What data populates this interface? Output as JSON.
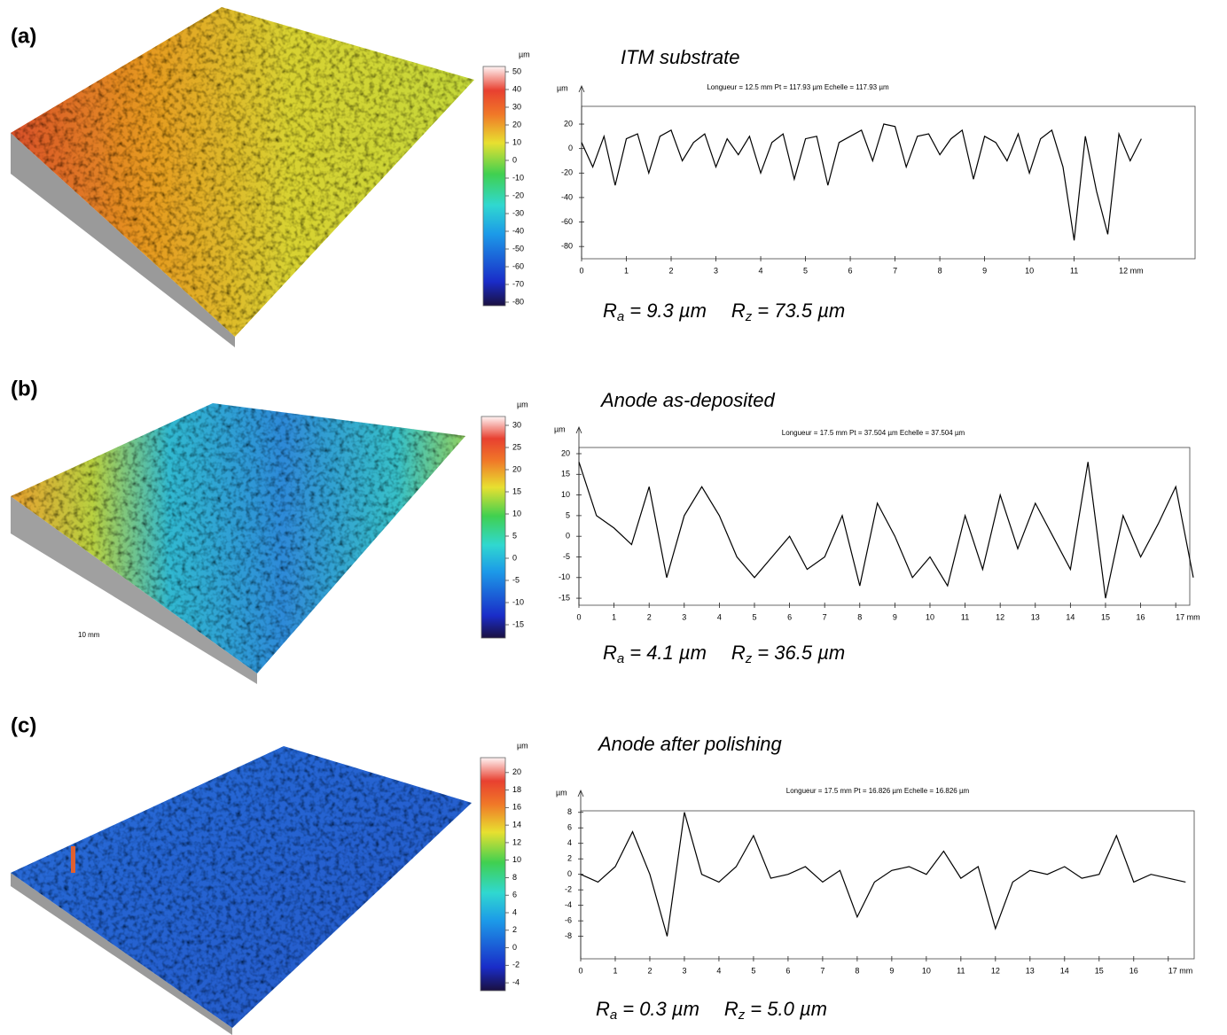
{
  "chart_data": [
    {
      "type": "line",
      "panel_label": "(a)",
      "title": "ITM substrate",
      "header": "Longueur = 12.5 mm  Pt = 117.93 µm  Echelle = 117.93 µm",
      "y_unit": "µm",
      "x": [
        0,
        0.25,
        0.5,
        0.75,
        1,
        1.25,
        1.5,
        1.75,
        2,
        2.25,
        2.5,
        2.75,
        3,
        3.25,
        3.5,
        3.75,
        4,
        4.25,
        4.5,
        4.75,
        5,
        5.25,
        5.5,
        5.75,
        6,
        6.25,
        6.5,
        6.75,
        7,
        7.25,
        7.5,
        7.75,
        8,
        8.25,
        8.5,
        8.75,
        9,
        9.25,
        9.5,
        9.75,
        10,
        10.25,
        10.5,
        10.75,
        11,
        11.25,
        11.5,
        11.75,
        12,
        12.25,
        12.5
      ],
      "values": [
        5,
        -15,
        10,
        -30,
        8,
        12,
        -20,
        10,
        15,
        -10,
        5,
        12,
        -15,
        8,
        -5,
        10,
        -20,
        5,
        12,
        -25,
        8,
        10,
        -30,
        5,
        10,
        15,
        -10,
        20,
        18,
        -15,
        10,
        12,
        -5,
        8,
        15,
        -25,
        10,
        5,
        -10,
        12,
        -20,
        8,
        15,
        -15,
        -75,
        10,
        -35,
        -70,
        12,
        -10,
        8
      ],
      "color": "#000000",
      "xlim": [
        0,
        13.7
      ],
      "ylim": [
        -90,
        34.5
      ],
      "xticks": [
        0,
        1,
        2,
        3,
        4,
        5,
        6,
        7,
        8,
        9,
        10,
        11,
        {
          "value": 12,
          "label": "12 mm"
        }
      ],
      "yticks": [
        20,
        0,
        -20,
        -40,
        -60,
        -80
      ],
      "colorbar": {
        "unit": "µm",
        "lim": [
          -82,
          53
        ],
        "ticks": [
          50,
          40,
          30,
          20,
          10,
          0,
          -10,
          -20,
          -30,
          -40,
          -50,
          -60,
          -70,
          -80
        ]
      },
      "roughness": [
        {
          "symbol": "R",
          "subscript": "a",
          "text": "= 9.3 µm"
        },
        {
          "symbol": "R",
          "subscript": "z",
          "text": "= 73.5 µm"
        }
      ]
    },
    {
      "type": "line",
      "panel_label": "(b)",
      "title": "Anode as-deposited",
      "header": "Longueur = 17.5 mm  Pt = 37.504 µm  Echelle = 37.504 µm",
      "y_unit": "µm",
      "surface_label": "10 mm",
      "x": [
        0,
        0.5,
        1,
        1.5,
        2,
        2.5,
        3,
        3.5,
        4,
        4.5,
        5,
        5.5,
        6,
        6.5,
        7,
        7.5,
        8,
        8.5,
        9,
        9.5,
        10,
        10.5,
        11,
        11.5,
        12,
        12.5,
        13,
        13.5,
        14,
        14.5,
        15,
        15.5,
        16,
        16.5,
        17,
        17.5
      ],
      "values": [
        18,
        5,
        2,
        -2,
        12,
        -10,
        5,
        12,
        5,
        -5,
        -10,
        -5,
        0,
        -8,
        -5,
        5,
        -12,
        8,
        0,
        -10,
        -5,
        -12,
        5,
        -8,
        10,
        -3,
        8,
        0,
        -8,
        18,
        -15,
        5,
        -5,
        3,
        12,
        -10
      ],
      "color": "#000000",
      "xlim": [
        0,
        17.4
      ],
      "ylim": [
        -16.7,
        21.5
      ],
      "xticks": [
        0,
        1,
        2,
        3,
        4,
        5,
        6,
        7,
        8,
        9,
        10,
        11,
        12,
        13,
        14,
        15,
        16,
        {
          "value": 17,
          "label": "17 mm"
        }
      ],
      "yticks": [
        20,
        15,
        10,
        5,
        0,
        -5,
        -10,
        -15
      ],
      "colorbar": {
        "unit": "µm",
        "lim": [
          -18,
          32
        ],
        "ticks": [
          30,
          25,
          20,
          15,
          10,
          5,
          0,
          -5,
          -10,
          -15
        ]
      },
      "roughness": [
        {
          "symbol": "R",
          "subscript": "a",
          "text": "= 4.1 µm"
        },
        {
          "symbol": "R",
          "subscript": "z",
          "text": "= 36.5 µm"
        }
      ]
    },
    {
      "type": "line",
      "panel_label": "(c)",
      "title": "Anode after polishing",
      "header": "Longueur = 17.5 mm  Pt = 16.826 µm  Echelle = 16.826 µm",
      "y_unit": "µm",
      "x": [
        0,
        0.5,
        1,
        1.5,
        2,
        2.5,
        3,
        3.5,
        4,
        4.5,
        5,
        5.5,
        6,
        6.5,
        7,
        7.5,
        8,
        8.5,
        9,
        9.5,
        10,
        10.5,
        11,
        11.5,
        12,
        12.5,
        13,
        13.5,
        14,
        14.5,
        15,
        15.5,
        16,
        16.5,
        17,
        17.5
      ],
      "values": [
        0,
        -1,
        1,
        5.5,
        0,
        -8,
        8,
        0,
        -1,
        1,
        5,
        -0.5,
        0,
        1,
        -1,
        0.5,
        -5.5,
        -1,
        0.5,
        1,
        0,
        3,
        -0.5,
        1,
        -7,
        -1,
        0.5,
        0,
        1,
        -0.5,
        0,
        5,
        -1,
        0,
        -0.5,
        -1
      ],
      "color": "#000000",
      "xlim": [
        0,
        17.75
      ],
      "ylim": [
        -10.9,
        8.2
      ],
      "xticks": [
        0,
        1,
        2,
        3,
        4,
        5,
        6,
        7,
        8,
        9,
        10,
        11,
        12,
        13,
        14,
        15,
        16,
        {
          "value": 17,
          "label": "17 mm"
        }
      ],
      "yticks": [
        8,
        6,
        4,
        2,
        0,
        -2,
        -4,
        -6,
        -8
      ],
      "colorbar": {
        "unit": "µm",
        "lim": [
          -4.9,
          21.7
        ],
        "ticks": [
          20,
          18,
          16,
          14,
          12,
          10,
          8,
          6,
          4,
          2,
          0,
          -2,
          -4
        ]
      },
      "roughness": [
        {
          "symbol": "R",
          "subscript": "a",
          "text": "= 0.3 µm"
        },
        {
          "symbol": "R",
          "subscript": "z",
          "text": "= 5.0 µm"
        }
      ]
    }
  ]
}
